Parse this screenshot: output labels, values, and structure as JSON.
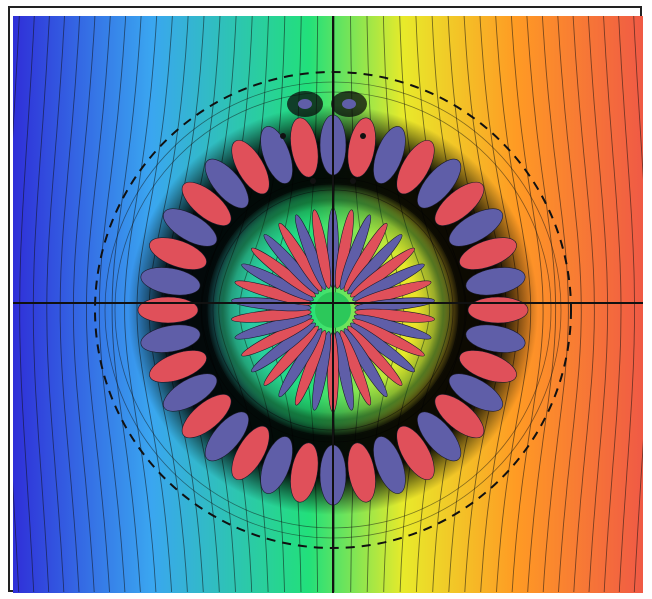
{
  "image": {
    "subject": "field-plot",
    "colormap": {
      "left": "#2f2fd8",
      "left_mid": "#3aa6f0",
      "center": "#22e07a",
      "center_right": "#e8ea2a",
      "right_mid": "#ff9a24",
      "right": "#f05a45"
    },
    "lobe_colors": {
      "red": "#e0505a",
      "blue": "#5f5ea8",
      "halo": "#0a0a0a"
    },
    "line_color": "#111111",
    "outer_ring_lobes": 36,
    "inner_ring_lobes": 34,
    "top_pair_count": 2,
    "dot_count": 4
  }
}
